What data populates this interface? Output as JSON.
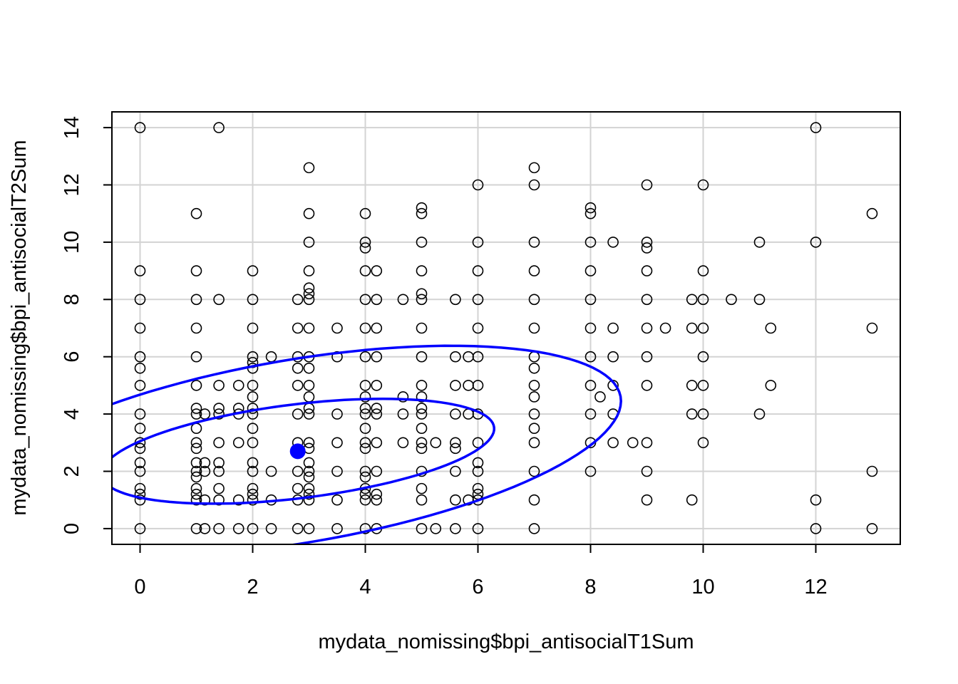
{
  "chart_data": {
    "type": "scatter",
    "title": "",
    "xlabel": "mydata_nomissing$bpi_antisocialT1Sum",
    "ylabel": "mydata_nomissing$bpi_antisocialT2Sum",
    "xlim": [
      -0.5,
      13.5
    ],
    "ylim": [
      -0.55,
      14.55
    ],
    "xticks": [
      0,
      2,
      4,
      6,
      8,
      10,
      12
    ],
    "yticks": [
      0,
      2,
      4,
      6,
      8,
      10,
      12,
      14
    ],
    "grid": true,
    "point_style": "open-circle",
    "points": [
      [
        0,
        14
      ],
      [
        0,
        5.6
      ],
      [
        0,
        9
      ],
      [
        0,
        8
      ],
      [
        0,
        7
      ],
      [
        0,
        6
      ],
      [
        0,
        5
      ],
      [
        0,
        4
      ],
      [
        0,
        3.5
      ],
      [
        0,
        3
      ],
      [
        0,
        2.8
      ],
      [
        0,
        2.3
      ],
      [
        0,
        2
      ],
      [
        0,
        1.4
      ],
      [
        0,
        1.2
      ],
      [
        0,
        1
      ],
      [
        0,
        0
      ],
      [
        1.4,
        14
      ],
      [
        1,
        11
      ],
      [
        1,
        9
      ],
      [
        1,
        8
      ],
      [
        1,
        7
      ],
      [
        1,
        6
      ],
      [
        1,
        5
      ],
      [
        1,
        4.2
      ],
      [
        1,
        4
      ],
      [
        1,
        3.5
      ],
      [
        1,
        3
      ],
      [
        1,
        2.8
      ],
      [
        1,
        2.3
      ],
      [
        1,
        2
      ],
      [
        1,
        1.8
      ],
      [
        1,
        1.4
      ],
      [
        1,
        1.2
      ],
      [
        1,
        1
      ],
      [
        1,
        0
      ],
      [
        1.15,
        4
      ],
      [
        1.15,
        2.3
      ],
      [
        1.15,
        2
      ],
      [
        1.15,
        1
      ],
      [
        1.15,
        0
      ],
      [
        1.4,
        8
      ],
      [
        1.4,
        5
      ],
      [
        1.4,
        4.2
      ],
      [
        1.4,
        4
      ],
      [
        1.4,
        3
      ],
      [
        1.4,
        2.3
      ],
      [
        1.4,
        2
      ],
      [
        1.4,
        1.4
      ],
      [
        1.4,
        1
      ],
      [
        1.4,
        0
      ],
      [
        1.75,
        5
      ],
      [
        1.75,
        4.2
      ],
      [
        1.75,
        4
      ],
      [
        1.75,
        3
      ],
      [
        1.75,
        1
      ],
      [
        1.75,
        0
      ],
      [
        2,
        9
      ],
      [
        2,
        8
      ],
      [
        2,
        7
      ],
      [
        2,
        6
      ],
      [
        2,
        5.8
      ],
      [
        2,
        5.6
      ],
      [
        2,
        5
      ],
      [
        2,
        4.6
      ],
      [
        2,
        4.2
      ],
      [
        2,
        4
      ],
      [
        2,
        3.5
      ],
      [
        2,
        3
      ],
      [
        2,
        2.3
      ],
      [
        2,
        2
      ],
      [
        2,
        1.4
      ],
      [
        2,
        1.2
      ],
      [
        2,
        1
      ],
      [
        2,
        0
      ],
      [
        2.33,
        6
      ],
      [
        2.33,
        2
      ],
      [
        2.33,
        1
      ],
      [
        2.33,
        0
      ],
      [
        2.8,
        8
      ],
      [
        2.8,
        7
      ],
      [
        2.8,
        6
      ],
      [
        2.8,
        5.6
      ],
      [
        2.8,
        5
      ],
      [
        2.8,
        4
      ],
      [
        2.8,
        3
      ],
      [
        2.8,
        2
      ],
      [
        2.8,
        1.4
      ],
      [
        2.8,
        1
      ],
      [
        2.8,
        0
      ],
      [
        3,
        12.6
      ],
      [
        3,
        11
      ],
      [
        3,
        10
      ],
      [
        3,
        9
      ],
      [
        3,
        8.4
      ],
      [
        3,
        8.2
      ],
      [
        3,
        8
      ],
      [
        3,
        7
      ],
      [
        3,
        6
      ],
      [
        3,
        5.6
      ],
      [
        3,
        5
      ],
      [
        3,
        4.6
      ],
      [
        3,
        4.2
      ],
      [
        3,
        4
      ],
      [
        3,
        3
      ],
      [
        3,
        2.8
      ],
      [
        3,
        2.3
      ],
      [
        3,
        2
      ],
      [
        3,
        1.8
      ],
      [
        3,
        1.4
      ],
      [
        3,
        1.2
      ],
      [
        3,
        1
      ],
      [
        3,
        0
      ],
      [
        3.5,
        7
      ],
      [
        3.5,
        6
      ],
      [
        3.5,
        4
      ],
      [
        3.5,
        3
      ],
      [
        3.5,
        2
      ],
      [
        3.5,
        1
      ],
      [
        3.5,
        0
      ],
      [
        4,
        11
      ],
      [
        4,
        10
      ],
      [
        4,
        9.8
      ],
      [
        4,
        9
      ],
      [
        4,
        8
      ],
      [
        4,
        7
      ],
      [
        4,
        6
      ],
      [
        4,
        5
      ],
      [
        4,
        4.6
      ],
      [
        4,
        4.2
      ],
      [
        4,
        4
      ],
      [
        4,
        3.5
      ],
      [
        4,
        3
      ],
      [
        4,
        2.8
      ],
      [
        4,
        2
      ],
      [
        4,
        1.8
      ],
      [
        4,
        1.4
      ],
      [
        4,
        1.2
      ],
      [
        4,
        1
      ],
      [
        4,
        0
      ],
      [
        4.2,
        9
      ],
      [
        4.2,
        8
      ],
      [
        4.2,
        7
      ],
      [
        4.2,
        6
      ],
      [
        4.2,
        5
      ],
      [
        4.2,
        4.2
      ],
      [
        4.2,
        4
      ],
      [
        4.2,
        3
      ],
      [
        4.2,
        2
      ],
      [
        4.2,
        1.2
      ],
      [
        4.2,
        1
      ],
      [
        4.2,
        0
      ],
      [
        4.67,
        8
      ],
      [
        4.67,
        4.6
      ],
      [
        4.67,
        4
      ],
      [
        4.67,
        3
      ],
      [
        5,
        11.2
      ],
      [
        5,
        11
      ],
      [
        5,
        10
      ],
      [
        5,
        9
      ],
      [
        5,
        8.2
      ],
      [
        5,
        8
      ],
      [
        5,
        7
      ],
      [
        5,
        6
      ],
      [
        5,
        5
      ],
      [
        5,
        4.6
      ],
      [
        5,
        4.2
      ],
      [
        5,
        4
      ],
      [
        5,
        3.5
      ],
      [
        5,
        3
      ],
      [
        5,
        2.8
      ],
      [
        5,
        2
      ],
      [
        5,
        1.4
      ],
      [
        5,
        1
      ],
      [
        5,
        0
      ],
      [
        5.25,
        3
      ],
      [
        5.25,
        0
      ],
      [
        5.6,
        8
      ],
      [
        5.6,
        6
      ],
      [
        5.6,
        5
      ],
      [
        5.6,
        4
      ],
      [
        5.6,
        3
      ],
      [
        5.6,
        2.8
      ],
      [
        5.6,
        2
      ],
      [
        5.6,
        1
      ],
      [
        5.6,
        0
      ],
      [
        5.83,
        6
      ],
      [
        5.83,
        5
      ],
      [
        5.83,
        4
      ],
      [
        5.83,
        1
      ],
      [
        6,
        12
      ],
      [
        6,
        10
      ],
      [
        6,
        9
      ],
      [
        6,
        8
      ],
      [
        6,
        7
      ],
      [
        6,
        6
      ],
      [
        6,
        5
      ],
      [
        6,
        4
      ],
      [
        6,
        3
      ],
      [
        6,
        2.3
      ],
      [
        6,
        2
      ],
      [
        6,
        1.4
      ],
      [
        6,
        1.2
      ],
      [
        6,
        1
      ],
      [
        6,
        0
      ],
      [
        7,
        12.6
      ],
      [
        7,
        12
      ],
      [
        7,
        10
      ],
      [
        7,
        9
      ],
      [
        7,
        8
      ],
      [
        7,
        7
      ],
      [
        7,
        6
      ],
      [
        7,
        5.6
      ],
      [
        7,
        5
      ],
      [
        7,
        4.6
      ],
      [
        7,
        4
      ],
      [
        7,
        3.5
      ],
      [
        7,
        3
      ],
      [
        7,
        2
      ],
      [
        7,
        1
      ],
      [
        7,
        0
      ],
      [
        8,
        11.2
      ],
      [
        8,
        11
      ],
      [
        8,
        10
      ],
      [
        8,
        9
      ],
      [
        8,
        8
      ],
      [
        8,
        7
      ],
      [
        8,
        6
      ],
      [
        8,
        5
      ],
      [
        8,
        4
      ],
      [
        8,
        3
      ],
      [
        8,
        2
      ],
      [
        8.17,
        4.6
      ],
      [
        8.4,
        10
      ],
      [
        8.4,
        7
      ],
      [
        8.4,
        6
      ],
      [
        8.4,
        5
      ],
      [
        8.4,
        4
      ],
      [
        8.4,
        3
      ],
      [
        8.75,
        3
      ],
      [
        9,
        12
      ],
      [
        9,
        10
      ],
      [
        9,
        9.8
      ],
      [
        9,
        9
      ],
      [
        9,
        8
      ],
      [
        9,
        7
      ],
      [
        9,
        6
      ],
      [
        9,
        5
      ],
      [
        9,
        3
      ],
      [
        9,
        2
      ],
      [
        9,
        1
      ],
      [
        9.33,
        7
      ],
      [
        9.8,
        8
      ],
      [
        9.8,
        7
      ],
      [
        9.8,
        5
      ],
      [
        9.8,
        4
      ],
      [
        9.8,
        1
      ],
      [
        10,
        12
      ],
      [
        10,
        9
      ],
      [
        10,
        8
      ],
      [
        10,
        7
      ],
      [
        10,
        6
      ],
      [
        10,
        5
      ],
      [
        10,
        4
      ],
      [
        10,
        3
      ],
      [
        10.5,
        8
      ],
      [
        11,
        10
      ],
      [
        11,
        8
      ],
      [
        11,
        4
      ],
      [
        11.2,
        7
      ],
      [
        11.2,
        5
      ],
      [
        12,
        14
      ],
      [
        12,
        10
      ],
      [
        12,
        1
      ],
      [
        12,
        0
      ],
      [
        13,
        11
      ],
      [
        13,
        7
      ],
      [
        13,
        2
      ],
      [
        13,
        0
      ]
    ],
    "mean_point": {
      "x": 2.8,
      "y": 2.7,
      "color": "#0000ff"
    },
    "ellipses": [
      {
        "name": "",
        "color": "#0000ff",
        "center": [
          2.8,
          2.7
        ],
        "semi_major": 3.6,
        "semi_minor": 1.6,
        "angle_deg": 16
      },
      {
        "name": "",
        "color": "#0000ff",
        "center": [
          2.8,
          2.7
        ],
        "semi_major": 6.1,
        "semi_minor": 3.05,
        "angle_deg": 23
      }
    ],
    "colors": {
      "points": "#000000",
      "grid": "#d3d3d3",
      "ellipse": "#0000ff",
      "frame": "#000000"
    }
  }
}
